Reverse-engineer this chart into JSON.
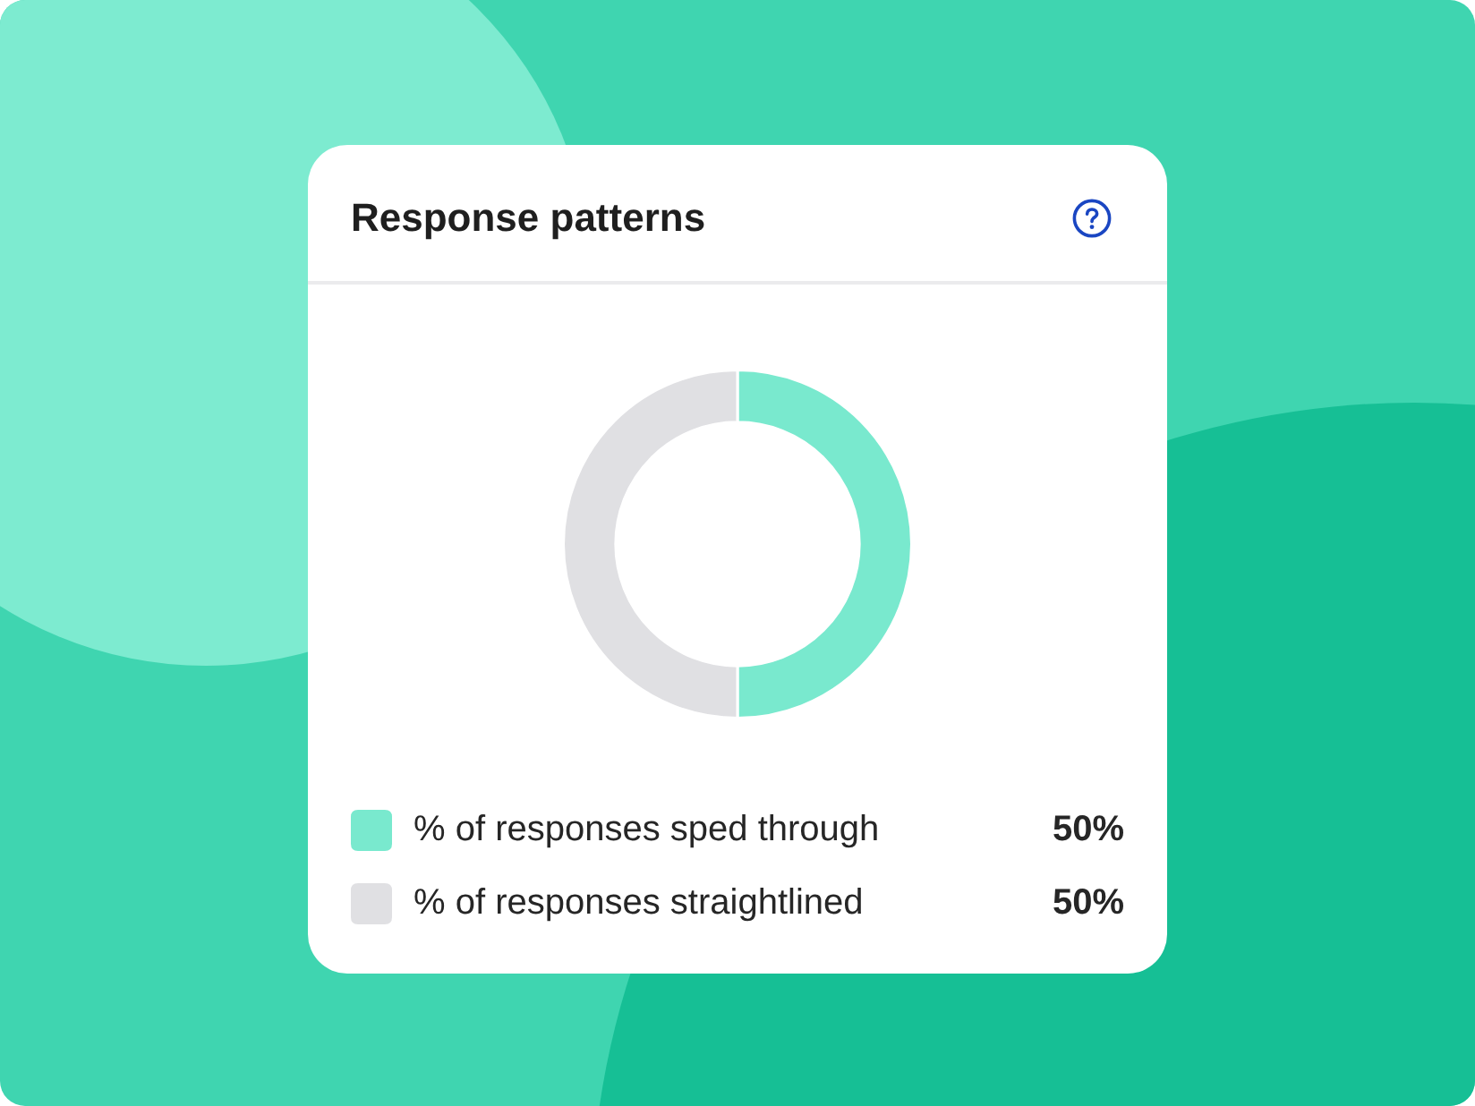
{
  "chart_data": {
    "type": "donut",
    "title": "Response patterns",
    "categories": [
      "% of responses sped through",
      "% of responses straightlined"
    ],
    "values": [
      50,
      50
    ],
    "colors": [
      "#79e9ce",
      "#e0e0e3"
    ],
    "value_labels": [
      "50%",
      "50%"
    ],
    "legend": "bottom"
  }
}
